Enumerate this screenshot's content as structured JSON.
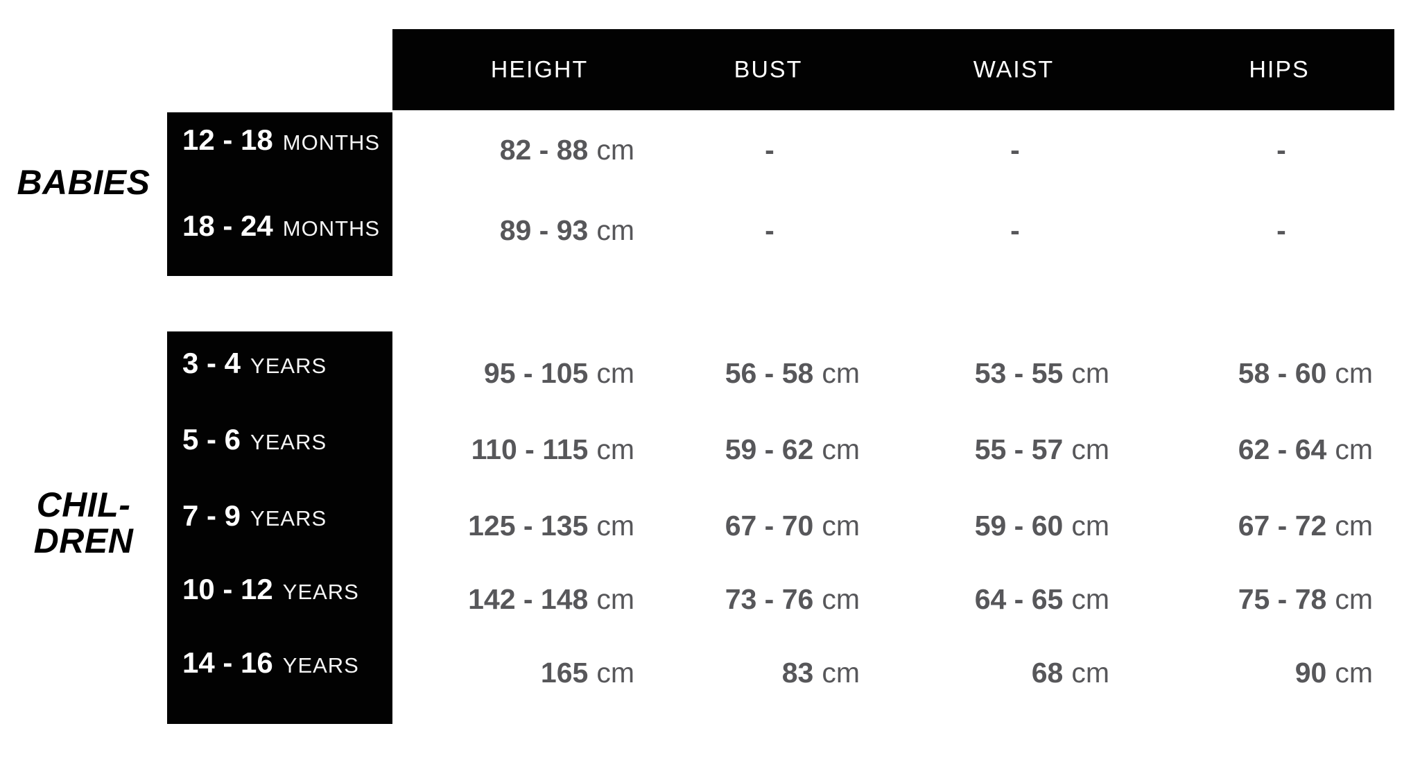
{
  "chart_data": {
    "type": "table",
    "columns": [
      "HEIGHT",
      "BUST",
      "WAIST",
      "HIPS"
    ],
    "unit_label": "cm",
    "groups": [
      {
        "label": "BABIES",
        "rows": [
          {
            "age": "12 - 18",
            "age_unit": "MONTHS",
            "height": "82 - 88",
            "bust": "-",
            "waist": "-",
            "hips": "-"
          },
          {
            "age": "18 - 24",
            "age_unit": "MONTHS",
            "height": "89 - 93",
            "bust": "-",
            "waist": "-",
            "hips": "-"
          }
        ]
      },
      {
        "label_line1": "CHIL-",
        "label_line2": "DREN",
        "rows": [
          {
            "age": "3 - 4",
            "age_unit": "YEARS",
            "height": "95 - 105",
            "bust": "56 - 58",
            "waist": "53 - 55",
            "hips": "58 - 60"
          },
          {
            "age": "5 - 6",
            "age_unit": "YEARS",
            "height": "110 - 115",
            "bust": "59 - 62",
            "waist": "55 - 57",
            "hips": "62 - 64"
          },
          {
            "age": "7 - 9",
            "age_unit": "YEARS",
            "height": "125 - 135",
            "bust": "67 - 70",
            "waist": "59 - 60",
            "hips": "67 - 72"
          },
          {
            "age": "10 - 12",
            "age_unit": "YEARS",
            "height": "142 - 148",
            "bust": "73 - 76",
            "waist": "64 - 65",
            "hips": "75 - 78"
          },
          {
            "age": "14 - 16",
            "age_unit": "YEARS",
            "height": "165",
            "bust": "83",
            "waist": "68",
            "hips": "90"
          }
        ]
      }
    ],
    "layout": {
      "grid": "off",
      "legend": "none",
      "header_background": "#020202",
      "value_alignment": "right"
    }
  },
  "colors": {
    "background": "#ffffff",
    "box_background": "#020202",
    "header_text": "#ffffff",
    "age_label_text": "#ffffff",
    "value_text": "#57575a",
    "group_label_text": "#000000"
  }
}
